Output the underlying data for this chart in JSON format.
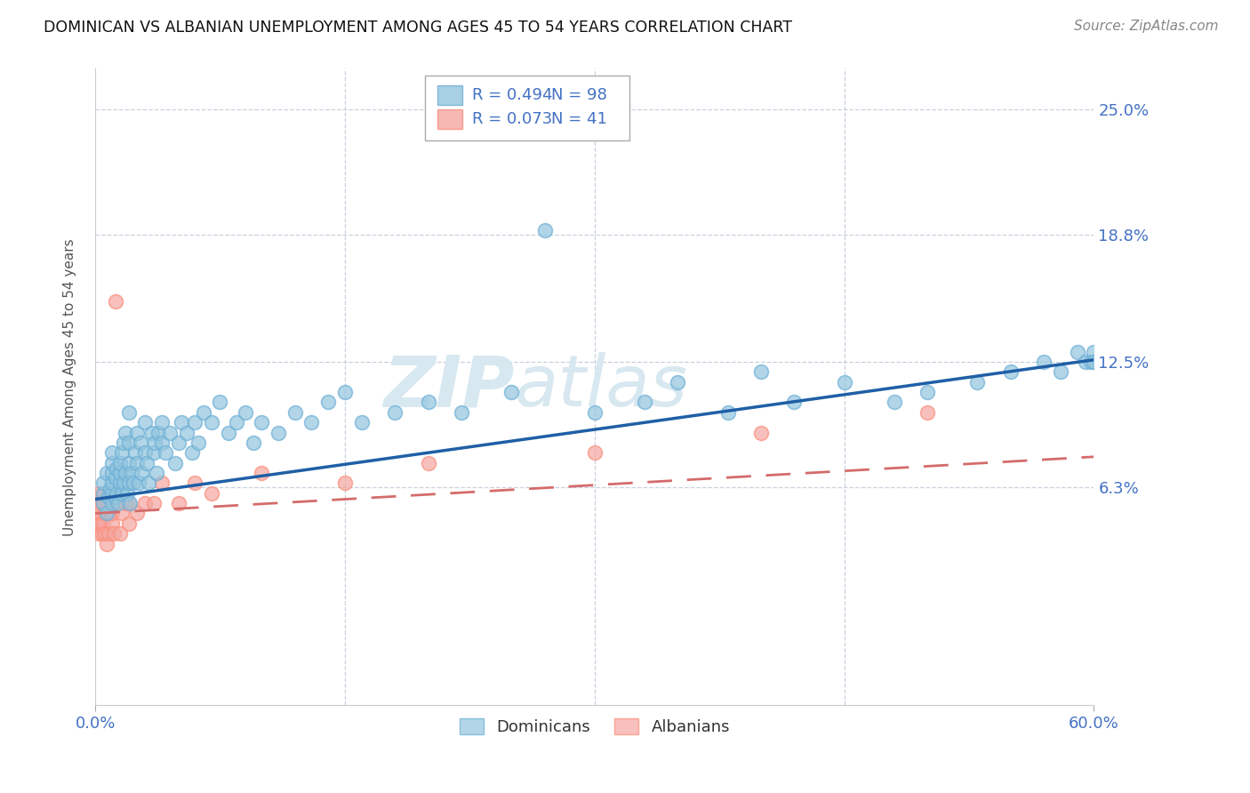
{
  "title": "DOMINICAN VS ALBANIAN UNEMPLOYMENT AMONG AGES 45 TO 54 YEARS CORRELATION CHART",
  "source": "Source: ZipAtlas.com",
  "ylabel": "Unemployment Among Ages 45 to 54 years",
  "ytick_labels": [
    "6.3%",
    "12.5%",
    "18.8%",
    "25.0%"
  ],
  "ytick_values": [
    0.063,
    0.125,
    0.188,
    0.25
  ],
  "xmin": 0.0,
  "xmax": 0.6,
  "ymin": -0.045,
  "ymax": 0.27,
  "dominican_color": "#92c5de",
  "dominican_edge_color": "#6baed6",
  "albanian_color": "#f4a6a0",
  "albanian_edge_color": "#fc8d7a",
  "dominican_line_color": "#1f5fa6",
  "albanian_line_color": "#d46b6b",
  "legend_r_dominican": "R = 0.494",
  "legend_n_dominican": "N = 98",
  "legend_r_albanian": "R = 0.073",
  "legend_n_albanian": "N = 41",
  "legend_text_color": "#4472c4",
  "watermark_color": "#d8e8f0",
  "grid_color": "#c8d0dc",
  "dominican_x": [
    0.005,
    0.005,
    0.005,
    0.007,
    0.007,
    0.008,
    0.009,
    0.01,
    0.01,
    0.01,
    0.01,
    0.01,
    0.01,
    0.012,
    0.012,
    0.013,
    0.013,
    0.014,
    0.015,
    0.015,
    0.015,
    0.016,
    0.016,
    0.017,
    0.017,
    0.018,
    0.018,
    0.019,
    0.02,
    0.02,
    0.02,
    0.02,
    0.021,
    0.022,
    0.023,
    0.024,
    0.025,
    0.025,
    0.026,
    0.027,
    0.028,
    0.03,
    0.03,
    0.031,
    0.032,
    0.034,
    0.035,
    0.036,
    0.037,
    0.038,
    0.04,
    0.04,
    0.042,
    0.045,
    0.048,
    0.05,
    0.052,
    0.055,
    0.058,
    0.06,
    0.062,
    0.065,
    0.07,
    0.075,
    0.08,
    0.085,
    0.09,
    0.095,
    0.1,
    0.11,
    0.12,
    0.13,
    0.14,
    0.15,
    0.16,
    0.18,
    0.2,
    0.22,
    0.25,
    0.27,
    0.3,
    0.33,
    0.35,
    0.38,
    0.4,
    0.42,
    0.45,
    0.48,
    0.5,
    0.53,
    0.55,
    0.57,
    0.58,
    0.59,
    0.595,
    0.598,
    0.6,
    0.6
  ],
  "dominican_y": [
    0.055,
    0.06,
    0.065,
    0.05,
    0.07,
    0.058,
    0.062,
    0.055,
    0.06,
    0.065,
    0.07,
    0.075,
    0.08,
    0.058,
    0.068,
    0.06,
    0.072,
    0.055,
    0.065,
    0.07,
    0.075,
    0.06,
    0.08,
    0.065,
    0.085,
    0.07,
    0.09,
    0.06,
    0.065,
    0.075,
    0.085,
    0.1,
    0.055,
    0.07,
    0.065,
    0.08,
    0.075,
    0.09,
    0.065,
    0.085,
    0.07,
    0.08,
    0.095,
    0.075,
    0.065,
    0.09,
    0.08,
    0.085,
    0.07,
    0.09,
    0.085,
    0.095,
    0.08,
    0.09,
    0.075,
    0.085,
    0.095,
    0.09,
    0.08,
    0.095,
    0.085,
    0.1,
    0.095,
    0.105,
    0.09,
    0.095,
    0.1,
    0.085,
    0.095,
    0.09,
    0.1,
    0.095,
    0.105,
    0.11,
    0.095,
    0.1,
    0.105,
    0.1,
    0.11,
    0.19,
    0.1,
    0.105,
    0.115,
    0.1,
    0.12,
    0.105,
    0.115,
    0.105,
    0.11,
    0.115,
    0.12,
    0.125,
    0.12,
    0.13,
    0.125,
    0.125,
    0.13,
    0.125
  ],
  "albanian_x": [
    0.0,
    0.0,
    0.001,
    0.001,
    0.002,
    0.002,
    0.003,
    0.003,
    0.004,
    0.005,
    0.005,
    0.005,
    0.006,
    0.006,
    0.007,
    0.007,
    0.008,
    0.009,
    0.01,
    0.01,
    0.011,
    0.012,
    0.013,
    0.015,
    0.016,
    0.018,
    0.02,
    0.02,
    0.025,
    0.03,
    0.035,
    0.04,
    0.05,
    0.06,
    0.07,
    0.1,
    0.15,
    0.2,
    0.3,
    0.4,
    0.5
  ],
  "albanian_y": [
    0.05,
    0.055,
    0.045,
    0.055,
    0.04,
    0.06,
    0.045,
    0.05,
    0.04,
    0.045,
    0.055,
    0.06,
    0.04,
    0.05,
    0.035,
    0.055,
    0.04,
    0.05,
    0.045,
    0.05,
    0.04,
    0.155,
    0.055,
    0.04,
    0.05,
    0.055,
    0.045,
    0.055,
    0.05,
    0.055,
    0.055,
    0.065,
    0.055,
    0.065,
    0.06,
    0.07,
    0.065,
    0.075,
    0.08,
    0.09,
    0.1
  ],
  "dom_trend_x": [
    0.0,
    0.6
  ],
  "dom_trend_y": [
    0.057,
    0.126
  ],
  "alb_trend_x": [
    0.0,
    0.6
  ],
  "alb_trend_y": [
    0.05,
    0.078
  ]
}
